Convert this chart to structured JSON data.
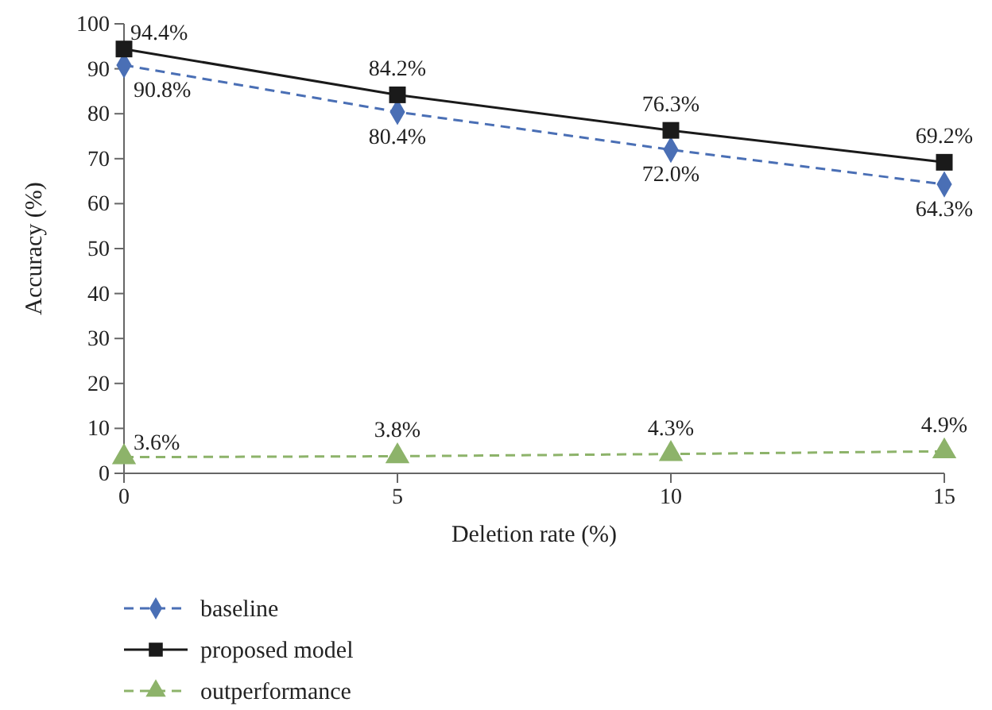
{
  "chart_data": {
    "type": "line",
    "xlabel": "Deletion rate (%)",
    "ylabel": "Accuracy (%)",
    "x": [
      0,
      5,
      10,
      15
    ],
    "xlim": [
      0,
      15
    ],
    "xticks": [
      0,
      5,
      10,
      15
    ],
    "ylim": [
      0,
      100
    ],
    "yticks": [
      0,
      10,
      20,
      30,
      40,
      50,
      60,
      70,
      80,
      90,
      100
    ],
    "grid": false,
    "legend": "bottom",
    "series": [
      {
        "name": "baseline",
        "color": "#4a6fb5",
        "marker": "diamond",
        "line_style": "dashed",
        "values": [
          90.8,
          80.4,
          72.0,
          64.3
        ],
        "value_labels": [
          "90.8%",
          "80.4%",
          "72.0%",
          "64.3%"
        ]
      },
      {
        "name": "proposed model",
        "color": "#1a1a1a",
        "marker": "square",
        "line_style": "solid",
        "values": [
          94.4,
          84.2,
          76.3,
          69.2
        ],
        "value_labels": [
          "94.4%",
          "84.2%",
          "76.3%",
          "69.2%"
        ]
      },
      {
        "name": "outperformance",
        "color": "#8db36a",
        "marker": "triangle",
        "line_style": "dashed",
        "values": [
          3.6,
          3.8,
          4.3,
          4.9
        ],
        "value_labels": [
          "3.6%",
          "3.8%",
          "4.3%",
          "4.9%"
        ]
      }
    ]
  }
}
